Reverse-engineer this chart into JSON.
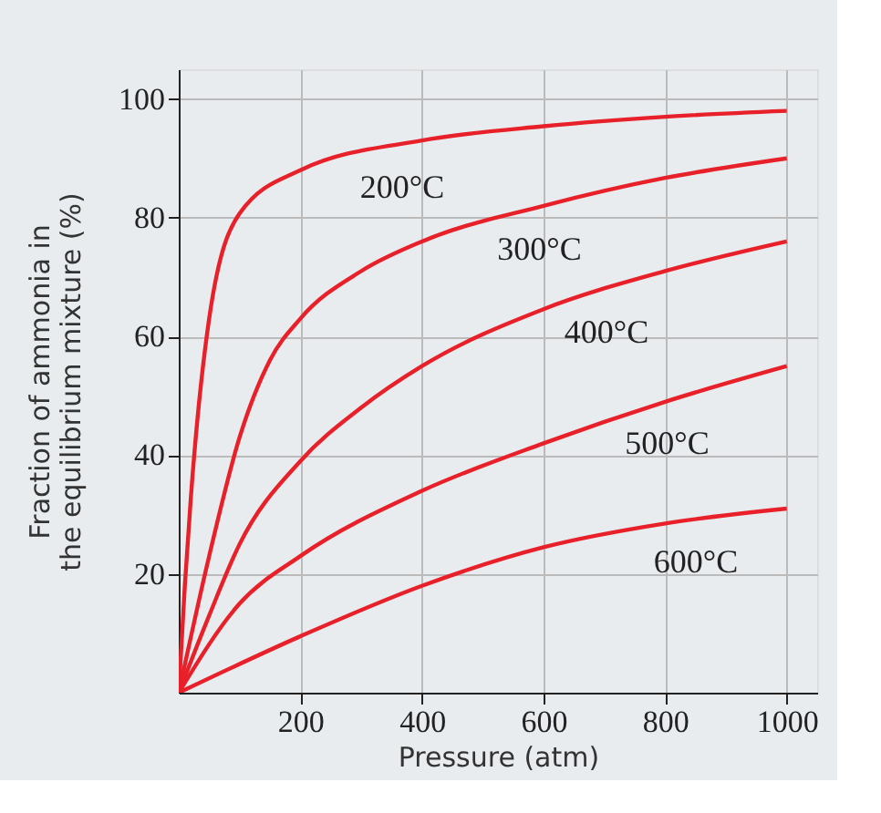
{
  "chart_data": {
    "type": "line",
    "xlabel": "Pressure (atm)",
    "ylabel": "Fraction of ammonia in\nthe equilibrium mixture (%)",
    "xlim": [
      0,
      1050
    ],
    "ylim": [
      0,
      105
    ],
    "xticks": [
      200,
      400,
      600,
      800,
      1000
    ],
    "yticks": [
      20,
      40,
      60,
      80,
      100
    ],
    "grid": true,
    "marker": "none",
    "line_style": "solid",
    "series": [
      {
        "name": "200°C",
        "color": "#e8202a",
        "x": [
          0,
          10,
          20,
          50,
          100,
          200,
          400,
          600,
          800,
          1000
        ],
        "values": [
          0,
          18,
          33,
          63,
          80.7,
          88,
          93,
          95.4,
          97,
          98
        ]
      },
      {
        "name": "300°C",
        "color": "#e8202a",
        "x": [
          0,
          50,
          100,
          150,
          200,
          300,
          400,
          600,
          800,
          1000
        ],
        "values": [
          0,
          23,
          43,
          56,
          63,
          71,
          76,
          82,
          86.7,
          90
        ]
      },
      {
        "name": "400°C",
        "color": "#e8202a",
        "x": [
          0,
          50,
          100,
          200,
          300,
          400,
          600,
          800,
          1000
        ],
        "values": [
          0,
          13,
          25,
          39,
          48,
          55,
          64.6,
          71,
          76
        ]
      },
      {
        "name": "500°C",
        "color": "#e8202a",
        "x": [
          0,
          100,
          200,
          400,
          600,
          800,
          1000
        ],
        "values": [
          0,
          15,
          23,
          34,
          42,
          49,
          55
        ]
      },
      {
        "name": "600°C",
        "color": "#e8202a",
        "x": [
          0,
          200,
          400,
          600,
          800,
          1000
        ],
        "values": [
          0,
          9.5,
          18,
          24.5,
          28.5,
          31
        ]
      }
    ]
  }
}
